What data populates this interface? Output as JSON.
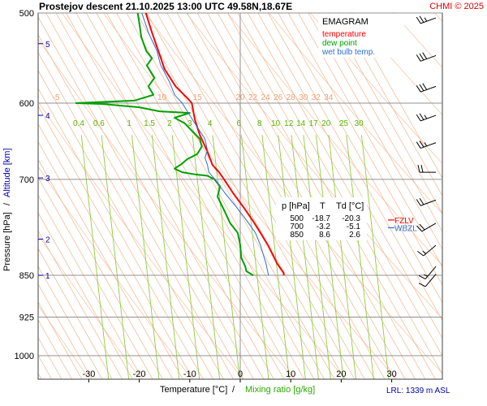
{
  "chart_data": {
    "type": "line",
    "title": "Prostejov   descent   21.10.2025 13:00 UTC  49.58N,18.67E",
    "copyright": "CHMI © 2025",
    "xlabel": "Temperature [°C]",
    "xlabel_sep": "/",
    "xlabel2": "Mixing ratio [g/kg]",
    "ylabel_pressure": "Pressure [hPa]",
    "ylabel_sep": "/",
    "ylabel_altitude": "Altitude [km]",
    "xlim": [
      -38.5,
      40
    ],
    "ylim": [
      500,
      1050
    ],
    "x_ticks": [
      -30,
      -20,
      -10,
      0,
      10,
      20,
      30
    ],
    "x_tick_labels": [
      "-30",
      "-20",
      "-10",
      "0",
      "10",
      "20",
      "30"
    ],
    "p_ticks": [
      500,
      600,
      700,
      850,
      925,
      1000
    ],
    "p_tick_labels": [
      "500",
      "600",
      "700",
      "850",
      "925",
      "1000"
    ],
    "altitude_km": [
      {
        "p": 532,
        "label": "5"
      },
      {
        "p": 615,
        "label": "4"
      },
      {
        "p": 698,
        "label": "3"
      },
      {
        "p": 790,
        "label": "2"
      },
      {
        "p": 850,
        "label": "1"
      }
    ],
    "legend": {
      "title": "EMAGRAM",
      "entries": [
        {
          "label": "temperature",
          "color": "#ff0000"
        },
        {
          "label": "dew point",
          "color": "#00a000"
        },
        {
          "label": "wet bulb temp.",
          "color": "#2f6fd0"
        }
      ]
    },
    "level_labels": [
      {
        "label": "FZLV",
        "color": "#ff0000",
        "p": 760
      },
      {
        "label": "WBZL",
        "color": "#2f6fd0",
        "p": 772
      }
    ],
    "isotherm_labels": {
      "p": 600,
      "labels": [
        "-5",
        "10",
        "15",
        "20",
        "22",
        "24",
        "26",
        "28",
        "30",
        "32",
        "34"
      ],
      "x": [
        -36.5,
        -15.5,
        -8.5,
        0,
        2.5,
        5,
        7.5,
        10,
        12.5,
        15,
        17.5
      ]
    },
    "mixing_ratio_labels": {
      "p": 620,
      "values": [
        "0.4",
        "0.6",
        "1",
        "1.5",
        "2",
        "3",
        "4",
        "6",
        "8",
        "10",
        "12",
        "14",
        "17",
        "20",
        "25",
        "30"
      ],
      "x": [
        -32,
        -28,
        -22,
        -18,
        -14,
        -10,
        -6,
        -0.3,
        3.8,
        7,
        9.6,
        12,
        14.5,
        17,
        20.5,
        23.5
      ]
    },
    "summary_table": {
      "headers": [
        "p [hPa]",
        "T",
        "Td [°C]"
      ],
      "rows": [
        [
          "500",
          "-18.7",
          "-20.3"
        ],
        [
          "700",
          "-3.2",
          "-5.1"
        ],
        [
          "850",
          "8.6",
          "2.6"
        ]
      ]
    },
    "footer": "LRL: 1339 m ASL",
    "series": [
      {
        "name": "temperature",
        "color": "#ff0000",
        "points": [
          [
            -18.7,
            500
          ],
          [
            -17.5,
            520
          ],
          [
            -16.2,
            540
          ],
          [
            -15,
            560
          ],
          [
            -12.8,
            580
          ],
          [
            -10.3,
            595
          ],
          [
            -9.6,
            600
          ],
          [
            -9,
            620
          ],
          [
            -8,
            640
          ],
          [
            -6.6,
            660
          ],
          [
            -5.5,
            680
          ],
          [
            -4.2,
            690
          ],
          [
            -3.2,
            700
          ],
          [
            -1.4,
            720
          ],
          [
            0.6,
            740
          ],
          [
            2.4,
            760
          ],
          [
            4,
            780
          ],
          [
            5.5,
            800
          ],
          [
            7.3,
            830
          ],
          [
            8.6,
            846
          ],
          [
            8.6,
            850
          ]
        ]
      },
      {
        "name": "dew point",
        "color": "#00a000",
        "points": [
          [
            -20.3,
            500
          ],
          [
            -20,
            510
          ],
          [
            -19.6,
            525
          ],
          [
            -18.6,
            540
          ],
          [
            -17.5,
            548
          ],
          [
            -18.5,
            556
          ],
          [
            -17,
            570
          ],
          [
            -18.2,
            580
          ],
          [
            -17.2,
            590
          ],
          [
            -21,
            597
          ],
          [
            -32.5,
            600
          ],
          [
            -27.5,
            601
          ],
          [
            -20,
            605
          ],
          [
            -16,
            610
          ],
          [
            -10,
            612
          ],
          [
            -13,
            618
          ],
          [
            -11,
            625
          ],
          [
            -9.5,
            635
          ],
          [
            -8,
            645
          ],
          [
            -7.6,
            655
          ],
          [
            -8.5,
            665
          ],
          [
            -10.5,
            672
          ],
          [
            -11.5,
            678
          ],
          [
            -13,
            685
          ],
          [
            -11.5,
            690
          ],
          [
            -9,
            693
          ],
          [
            -6.5,
            695
          ],
          [
            -5.1,
            700
          ],
          [
            -4,
            710
          ],
          [
            -4.5,
            725
          ],
          [
            -3.2,
            745
          ],
          [
            -2,
            765
          ],
          [
            -0.5,
            780
          ],
          [
            0,
            800
          ],
          [
            0.2,
            820
          ],
          [
            1,
            835
          ],
          [
            1.2,
            843
          ],
          [
            2.6,
            850
          ]
        ]
      },
      {
        "name": "wet bulb temp.",
        "color": "#2f6fd0",
        "points": [
          [
            -19.5,
            500
          ],
          [
            -18.2,
            520
          ],
          [
            -16.5,
            540
          ],
          [
            -15.8,
            555
          ],
          [
            -14,
            575
          ],
          [
            -13,
            590
          ],
          [
            -11.5,
            600
          ],
          [
            -10,
            615
          ],
          [
            -8.5,
            630
          ],
          [
            -7,
            645
          ],
          [
            -6.5,
            660
          ],
          [
            -7,
            670
          ],
          [
            -6.5,
            680
          ],
          [
            -6.2,
            690
          ],
          [
            -5,
            700
          ],
          [
            -3,
            720
          ],
          [
            -0.8,
            740
          ],
          [
            1.2,
            760
          ],
          [
            3,
            780
          ],
          [
            4,
            800
          ],
          [
            5.1,
            830
          ],
          [
            5.6,
            850
          ]
        ]
      }
    ],
    "wind_barbs": [
      {
        "p": 505,
        "dir": 250,
        "kt": 25
      },
      {
        "p": 545,
        "dir": 250,
        "kt": 30
      },
      {
        "p": 580,
        "dir": 250,
        "kt": 30
      },
      {
        "p": 615,
        "dir": 250,
        "kt": 25
      },
      {
        "p": 650,
        "dir": 250,
        "kt": 25
      },
      {
        "p": 690,
        "dir": 270,
        "kt": 20
      },
      {
        "p": 730,
        "dir": 250,
        "kt": 20
      },
      {
        "p": 765,
        "dir": 240,
        "kt": 20
      },
      {
        "p": 800,
        "dir": 230,
        "kt": 15
      },
      {
        "p": 835,
        "dir": 220,
        "kt": 15
      },
      {
        "p": 848,
        "dir": 220,
        "kt": 10
      }
    ],
    "colors": {
      "frame": "#404040",
      "grid": "#909090",
      "isotherm": "#f5b48c",
      "dry_adiabat": "#f7c8a8",
      "mixing_ratio": "#8ccf3c",
      "mixing_label": "#55b800",
      "isotherm_label": "#f0a070",
      "altitude_label": "#0000b0",
      "pressure_label": "#000000",
      "wind": "#000000"
    }
  }
}
